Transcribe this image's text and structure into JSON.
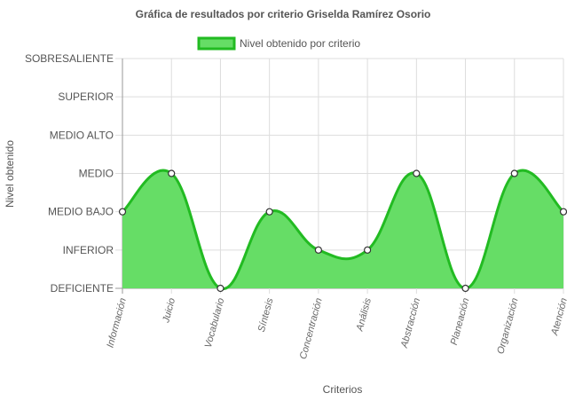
{
  "chart_data": {
    "type": "area",
    "title": "Gráfica de resultados por criterio Griselda Ramírez Osorio",
    "xlabel": "Criterios",
    "ylabel": "Nivel obtenido",
    "y_levels": [
      "DEFICIENTE",
      "INFERIOR",
      "MEDIO BAJO",
      "MEDIO",
      "MEDIO ALTO",
      "SUPERIOR",
      "SOBRESALIENTE"
    ],
    "ylim": [
      0,
      6
    ],
    "categories": [
      "Información",
      "Juicio",
      "Vocabulario",
      "Síntesis",
      "Concentración",
      "Análisis",
      "Abstracción",
      "Planeación",
      "Organización",
      "Atención"
    ],
    "series": [
      {
        "name": "Nivel obtenido por criterio",
        "values": [
          2,
          3,
          0,
          2,
          1,
          1,
          3,
          0,
          3,
          2
        ]
      }
    ],
    "legend_position": "top",
    "grid": true,
    "colors": {
      "fill": "#66dd66",
      "line": "#22bb22",
      "grid": "#dddddd",
      "axis": "#999999"
    }
  }
}
